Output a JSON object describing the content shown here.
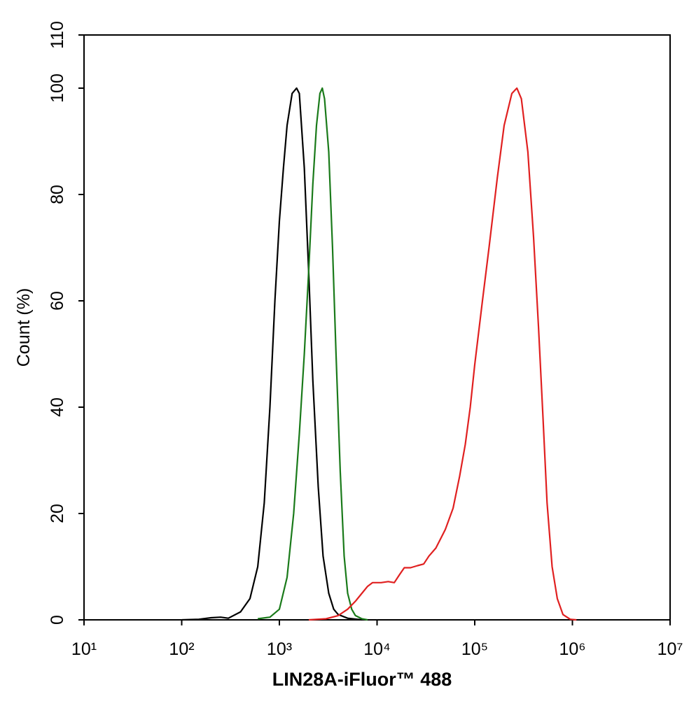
{
  "chart_data": {
    "type": "line",
    "xlabel": "LIN28A-iFluor™ 488",
    "ylabel": "Count  (%)",
    "xscale": "log",
    "xlim": [
      10,
      10000000
    ],
    "ylim": [
      0,
      110
    ],
    "xticks": [
      {
        "value": 10,
        "label": "10¹"
      },
      {
        "value": 100,
        "label": "10²"
      },
      {
        "value": 1000,
        "label": "10³"
      },
      {
        "value": 10000,
        "label": "10⁴"
      },
      {
        "value": 100000,
        "label": "10⁵"
      },
      {
        "value": 1000000,
        "label": "10⁶"
      },
      {
        "value": 10000000,
        "label": "10⁷"
      }
    ],
    "yticks": [
      0,
      20,
      40,
      60,
      80,
      100,
      110
    ],
    "series": [
      {
        "color": "#000000",
        "x": [
          100,
          150,
          200,
          250,
          300,
          400,
          500,
          600,
          700,
          800,
          900,
          1000,
          1100,
          1200,
          1350,
          1500,
          1600,
          1800,
          2000,
          2200,
          2500,
          2800,
          3200,
          3600,
          4000,
          5000,
          7000
        ],
        "values": [
          0,
          0.1,
          0.4,
          0.5,
          0.3,
          1.5,
          4,
          10,
          22,
          40,
          60,
          75,
          85,
          93,
          99,
          100,
          99,
          85,
          65,
          45,
          25,
          12,
          5,
          2,
          1,
          0.3,
          0
        ]
      },
      {
        "color": "#1a7a1a",
        "x": [
          600,
          800,
          1000,
          1200,
          1400,
          1600,
          1800,
          2000,
          2200,
          2400,
          2600,
          2750,
          2900,
          3200,
          3500,
          3800,
          4200,
          4600,
          5000,
          5500,
          6000,
          7000,
          8000
        ],
        "values": [
          0.2,
          0.5,
          2,
          8,
          20,
          35,
          50,
          66,
          82,
          93,
          99,
          100,
          98,
          88,
          70,
          50,
          28,
          12,
          5,
          2,
          0.8,
          0.2,
          0
        ]
      },
      {
        "color": "#e02020",
        "x": [
          2000,
          3000,
          4000,
          5000,
          6000,
          7000,
          8000,
          9000,
          11000,
          13000,
          15000,
          17000,
          19000,
          22000,
          26000,
          30000,
          34000,
          40000,
          50000,
          60000,
          70000,
          80000,
          90000,
          100000,
          120000,
          140000,
          170000,
          200000,
          240000,
          270000,
          300000,
          350000,
          400000,
          450000,
          500000,
          550000,
          620000,
          700000,
          800000,
          950000,
          1100000
        ],
        "values": [
          0,
          0.2,
          0.8,
          2,
          3.5,
          5,
          6.3,
          7,
          7,
          7.2,
          7,
          8.5,
          9.8,
          9.8,
          10.2,
          10.5,
          12,
          13.5,
          17,
          21,
          27,
          33,
          40,
          48,
          60,
          70,
          83,
          93,
          99,
          100,
          98,
          88,
          72,
          55,
          38,
          22,
          10,
          4,
          1,
          0.1,
          0
        ]
      }
    ]
  }
}
